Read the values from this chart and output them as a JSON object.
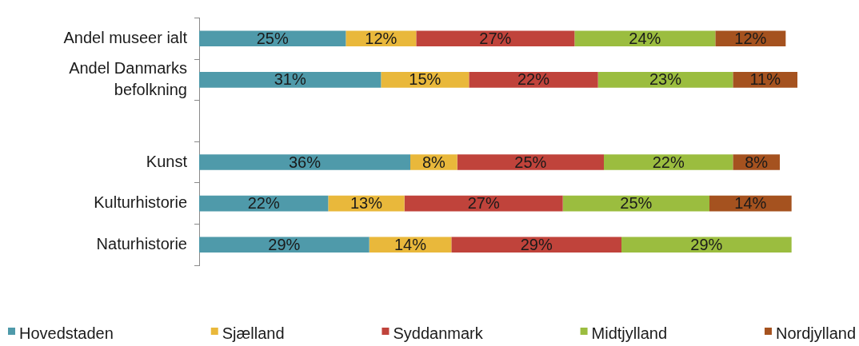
{
  "chart_data": {
    "type": "bar",
    "orientation": "horizontal",
    "stacked": true,
    "categories": [
      "Andel museer ialt",
      "Andel Danmarks befolkning",
      null,
      "Kunst",
      "Kulturhistorie",
      "Naturhistorie"
    ],
    "series": [
      {
        "name": "Hovedstaden",
        "color": "#4f9aaa",
        "values": [
          25,
          31,
          null,
          36,
          22,
          29
        ],
        "value_labels": [
          "25%",
          "31%",
          null,
          "36%",
          "22%",
          "29%"
        ]
      },
      {
        "name": "Sjælland",
        "color": "#e9b83b",
        "values": [
          12,
          15,
          null,
          8,
          13,
          14
        ],
        "value_labels": [
          "12%",
          "15%",
          null,
          "8%",
          "13%",
          "14%"
        ]
      },
      {
        "name": "Syddanmark",
        "color": "#c0433b",
        "values": [
          27,
          22,
          null,
          25,
          27,
          29
        ],
        "value_labels": [
          "27%",
          "22%",
          null,
          "25%",
          "27%",
          "29%"
        ]
      },
      {
        "name": "Midtjylland",
        "color": "#9bbd3f",
        "values": [
          24,
          23,
          null,
          22,
          25,
          29
        ],
        "value_labels": [
          "24%",
          "23%",
          null,
          "22%",
          "25%",
          "29%"
        ]
      },
      {
        "name": "Nordjylland",
        "color": "#a5521f",
        "values": [
          12,
          11,
          null,
          8,
          14,
          null
        ],
        "value_labels": [
          "12%",
          "11%",
          null,
          "8%",
          "14%",
          null
        ]
      }
    ],
    "legend": "bottom",
    "tick_labels": "y"
  }
}
